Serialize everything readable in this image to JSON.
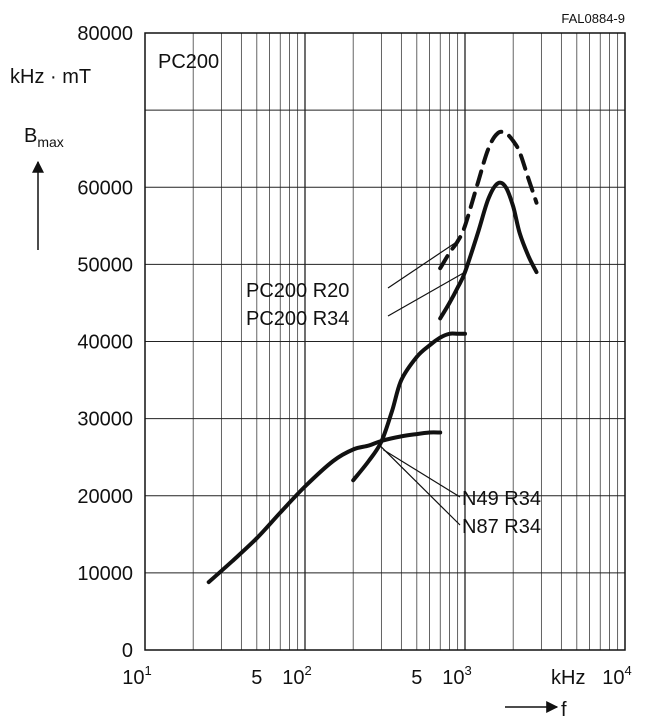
{
  "chart_data": {
    "type": "line",
    "figure_code": "FAL0884-9",
    "panel_label": "PC200",
    "y_unit": "kHz · mT",
    "y_symbol": "B",
    "y_symbol_sub": "max",
    "x_symbol": "f",
    "x_unit": "kHz",
    "x_scale": "log",
    "xlim": [
      10,
      10000
    ],
    "ylim": [
      0,
      80000
    ],
    "grid": true,
    "y_ticks": [
      "0",
      "10000",
      "20000",
      "30000",
      "40000",
      "50000",
      "60000",
      "80000"
    ],
    "y_tick_values": [
      0,
      10000,
      20000,
      30000,
      40000,
      50000,
      60000,
      80000
    ],
    "x_ticks": [
      {
        "value": 10,
        "base": "10",
        "exp": "1"
      },
      {
        "value": 50,
        "base": "5",
        "exp": ""
      },
      {
        "value": 100,
        "base": "10",
        "exp": "2"
      },
      {
        "value": 500,
        "base": "5",
        "exp": ""
      },
      {
        "value": 1000,
        "base": "10",
        "exp": "3"
      },
      {
        "value": 10000,
        "base": "10",
        "exp": "4"
      }
    ],
    "series": [
      {
        "name": "N87 R34",
        "style": "solid",
        "x": [
          25,
          35,
          50,
          70,
          100,
          150,
          200,
          250,
          300,
          400,
          500,
          600,
          700
        ],
        "y": [
          8800,
          11500,
          14500,
          17800,
          21200,
          24500,
          26000,
          26500,
          27100,
          27700,
          28000,
          28200,
          28200
        ]
      },
      {
        "name": "N49 R34",
        "style": "solid",
        "x": [
          200,
          250,
          300,
          350,
          400,
          500,
          600,
          700,
          800,
          900,
          1000
        ],
        "y": [
          22000,
          24500,
          27000,
          31000,
          35000,
          38000,
          39500,
          40500,
          41000,
          41000,
          41000
        ]
      },
      {
        "name": "PC200 R34",
        "style": "solid",
        "x": [
          700,
          800,
          900,
          1000,
          1200,
          1400,
          1600,
          1800,
          2000,
          2200,
          2500,
          2800
        ],
        "y": [
          43000,
          45000,
          47000,
          49000,
          54000,
          58500,
          60500,
          60000,
          57500,
          54000,
          51000,
          49000
        ]
      },
      {
        "name": "PC200 R20",
        "style": "dashed",
        "x": [
          700,
          800,
          900,
          1000,
          1200,
          1400,
          1600,
          1800,
          2000,
          2200,
          2500,
          2800
        ],
        "y": [
          49500,
          51500,
          53000,
          55000,
          60500,
          65000,
          67000,
          67000,
          66000,
          64500,
          61000,
          58000
        ]
      }
    ],
    "annotations": [
      {
        "text": "PC200 R20",
        "target": "PC200 R20"
      },
      {
        "text": "PC200 R34",
        "target": "PC200 R34"
      },
      {
        "text": "N49 R34",
        "target": "N49 R34"
      },
      {
        "text": "N87 R34",
        "target": "N87 R34"
      }
    ]
  }
}
